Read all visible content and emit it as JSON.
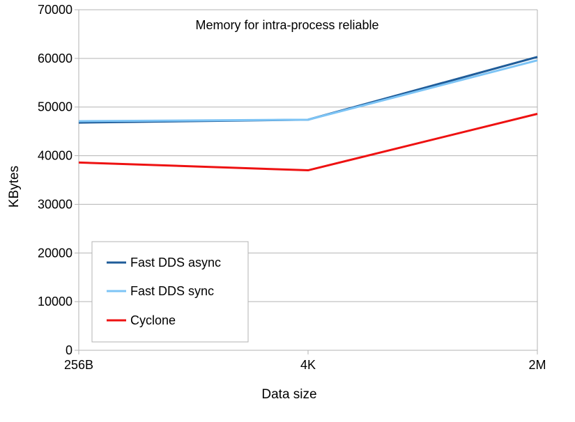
{
  "chart_data": {
    "type": "line",
    "title": "Memory for intra-process reliable",
    "xlabel": "Data size",
    "ylabel": "KBytes",
    "categories": [
      "256B",
      "4K",
      "2M"
    ],
    "ylim": [
      0,
      70000
    ],
    "yticks": [
      "0",
      "10000",
      "20000",
      "30000",
      "40000",
      "50000",
      "60000",
      "70000"
    ],
    "grid": true,
    "legend_position": "bottom-left",
    "series": [
      {
        "name": "Fast DDS async",
        "color": "#1f5c99",
        "values": [
          46800,
          47400,
          60300
        ]
      },
      {
        "name": "Fast DDS sync",
        "color": "#7dc4f5",
        "values": [
          47100,
          47400,
          59600
        ]
      },
      {
        "name": "Cyclone",
        "color": "#ee1111",
        "values": [
          38600,
          37000,
          48600
        ]
      }
    ]
  }
}
